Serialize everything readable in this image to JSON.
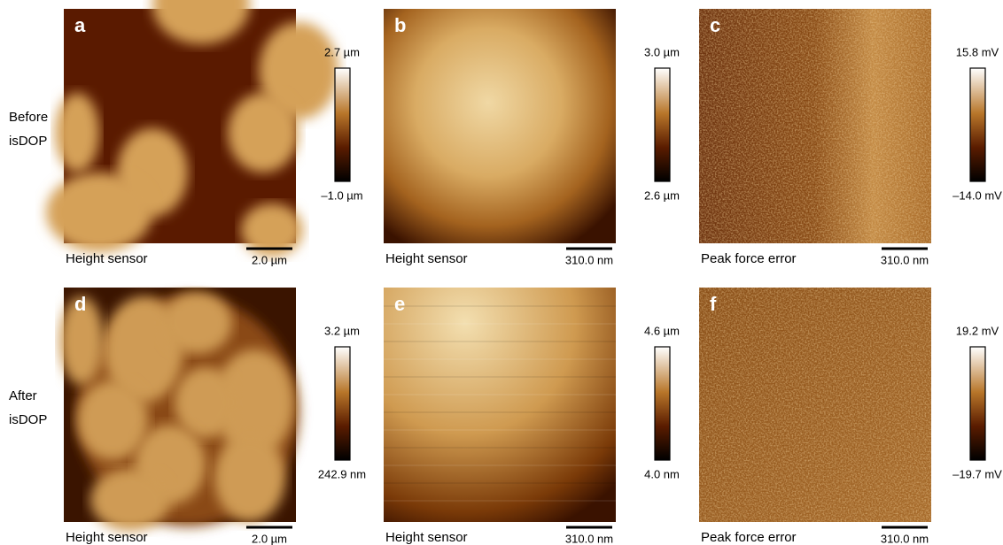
{
  "rows": [
    {
      "label": [
        "Before",
        "isDOP"
      ]
    },
    {
      "label": [
        "After",
        "isDOP"
      ]
    }
  ],
  "panels": [
    {
      "letter": "a",
      "caption": "Height sensor",
      "scale_bar": "2.0 µm",
      "colorbar_max": "2.7 µm",
      "colorbar_min": "–1.0 µm"
    },
    {
      "letter": "b",
      "caption": "Height sensor",
      "scale_bar": "310.0 nm",
      "colorbar_max": "3.0 µm",
      "colorbar_min": "2.6 µm"
    },
    {
      "letter": "c",
      "caption": "Peak force error",
      "scale_bar": "310.0 nm",
      "colorbar_max": "15.8 mV",
      "colorbar_min": "–14.0 mV"
    },
    {
      "letter": "d",
      "caption": "Height sensor",
      "scale_bar": "2.0 µm",
      "colorbar_max": "3.2 µm",
      "colorbar_min": "242.9 nm"
    },
    {
      "letter": "e",
      "caption": "Height sensor",
      "scale_bar": "310.0 nm",
      "colorbar_max": "4.6 µm",
      "colorbar_min": "4.0 nm"
    },
    {
      "letter": "f",
      "caption": "Peak force error",
      "scale_bar": "310.0 nm",
      "colorbar_max": "19.2 mV",
      "colorbar_min": "–19.7 mV"
    }
  ]
}
